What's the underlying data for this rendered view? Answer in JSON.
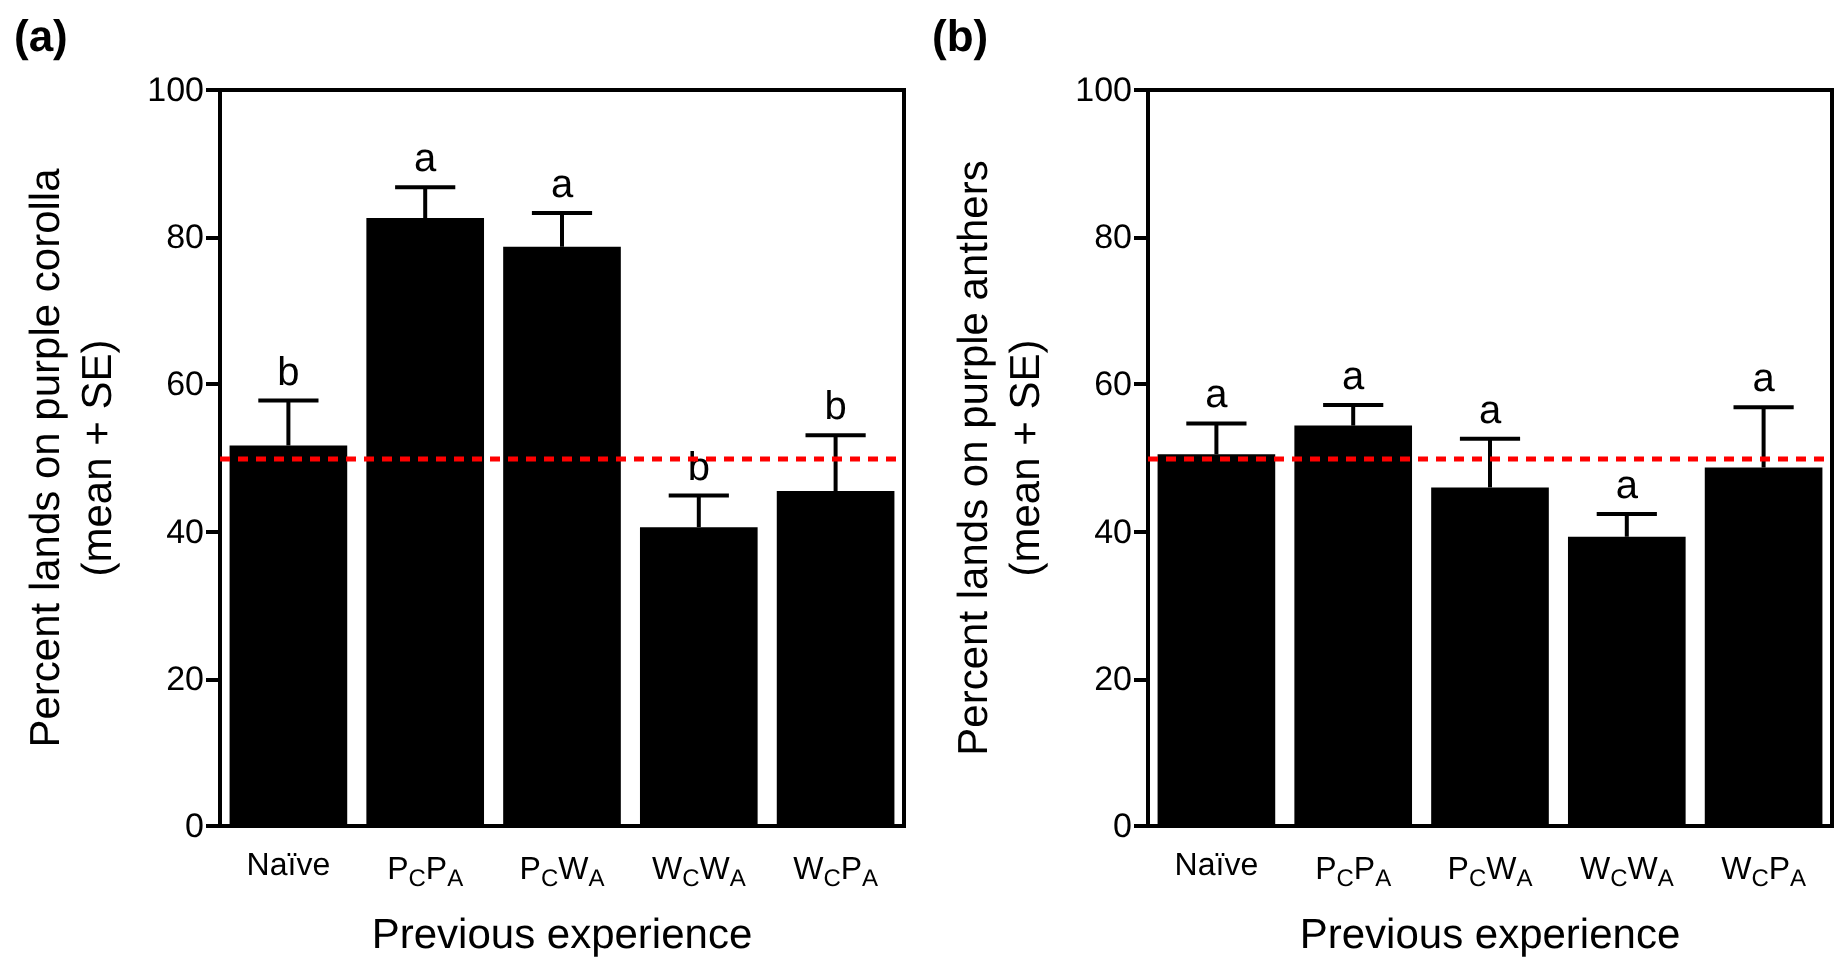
{
  "chart_data": [
    {
      "type": "bar",
      "title": "(a)",
      "xlabel": "Previous experience",
      "ylabel": "Percent lands on purple corolla\n(mean + SE)",
      "categories": [
        "Naïve",
        "P$_{C}$P$_{A}$",
        "P$_{C}$W$_{A}$",
        "W$_{C}$W$_{A}$",
        "W$_{C}$P$_{A}$"
      ],
      "values": [
        51.7,
        82.6,
        78.7,
        40.6,
        45.5
      ],
      "color": "#000000",
      "errors": [
        [
          51.7,
          57.8
        ],
        [
          82.6,
          86.8
        ],
        [
          78.7,
          83.3
        ],
        [
          40.6,
          44.9
        ],
        [
          45.5,
          53.1
        ]
      ],
      "ylim": [
        0,
        100
      ],
      "yticks": [
        0,
        20,
        40,
        60,
        80,
        100
      ],
      "grid": false,
      "ref_lines": [
        {
          "axis": "y",
          "value": 50,
          "color": "#ff0000",
          "line_style": "dashed"
        }
      ],
      "annotations": [
        "b",
        "a",
        "a",
        "b",
        "b"
      ]
    },
    {
      "type": "bar",
      "title": "(b)",
      "xlabel": "Previous experience",
      "ylabel": "Percent lands on purple anthers\n(mean + SE)",
      "categories": [
        "Naïve",
        "P$_{C}$P$_{A}$",
        "P$_{C}$W$_{A}$",
        "W$_{C}$W$_{A}$",
        "W$_{C}$P$_{A}$"
      ],
      "values": [
        50.5,
        54.4,
        46.0,
        39.3,
        48.7
      ],
      "color": "#000000",
      "errors": [
        [
          50.5,
          54.7
        ],
        [
          54.4,
          57.2
        ],
        [
          46.0,
          52.6
        ],
        [
          39.3,
          42.4
        ],
        [
          48.7,
          56.9
        ]
      ],
      "ylim": [
        0,
        100
      ],
      "yticks": [
        0,
        20,
        40,
        60,
        80,
        100
      ],
      "grid": false,
      "ref_lines": [
        {
          "axis": "y",
          "value": 50,
          "color": "#ff0000",
          "line_style": "dashed"
        }
      ],
      "annotations": [
        "a",
        "a",
        "a",
        "a",
        "a"
      ]
    }
  ]
}
